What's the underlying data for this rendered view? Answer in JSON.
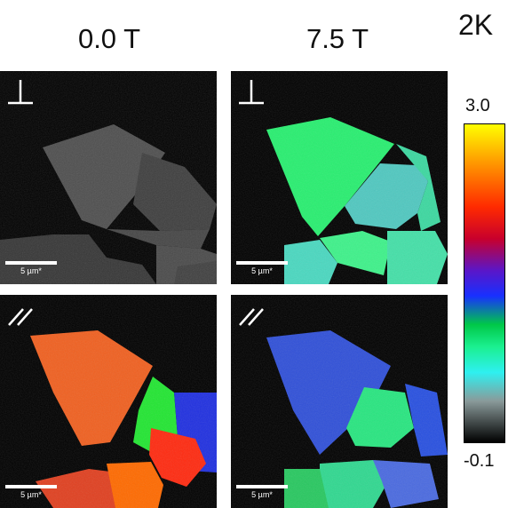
{
  "temperature": "2K",
  "columns": [
    {
      "title": "0.0 T"
    },
    {
      "title": "7.5 T"
    }
  ],
  "orientations": {
    "perpendicular": "⊥",
    "parallel": "//"
  },
  "scale_bar": {
    "label": "5 µm*"
  },
  "colorbar": {
    "max_label": "3.0",
    "min_label": "-0.1",
    "stops": [
      "#ffff00",
      "#ff9900",
      "#ff2a00",
      "#c8002c",
      "#5a16c8",
      "#1830ff",
      "#00c848",
      "#1bf090",
      "#2ef0f0",
      "#8a9a9a",
      "#000000"
    ]
  },
  "panels": [
    {
      "field": "0.0 T",
      "orientation": "perpendicular",
      "colors": {
        "a": "#4e4e4e",
        "b": "#3e3e3e",
        "c": "#454545",
        "d": "#363636",
        "e": "#4a4a4a",
        "f": "#404040"
      }
    },
    {
      "field": "7.5 T",
      "orientation": "perpendicular",
      "colors": {
        "a": "#28ef70",
        "b": "#50c8c0",
        "c": "#3cd8a0",
        "d": "#4ad8c0",
        "e": "#3ef28a",
        "f": "#44e0a8"
      }
    },
    {
      "field": "0.0 T",
      "orientation": "parallel",
      "colors": {
        "a": "#f06020",
        "b": "#22e632",
        "c": "#2030e0",
        "d": "#ff2a10",
        "e": "#e04020",
        "f": "#ff6a00"
      }
    },
    {
      "field": "7.5 T",
      "orientation": "parallel",
      "colors": {
        "a": "#3050d8",
        "b": "#28e680",
        "c": "#2850e0",
        "d": "#30d890",
        "e": "#28c860",
        "f": "#4a6ae0"
      }
    }
  ]
}
